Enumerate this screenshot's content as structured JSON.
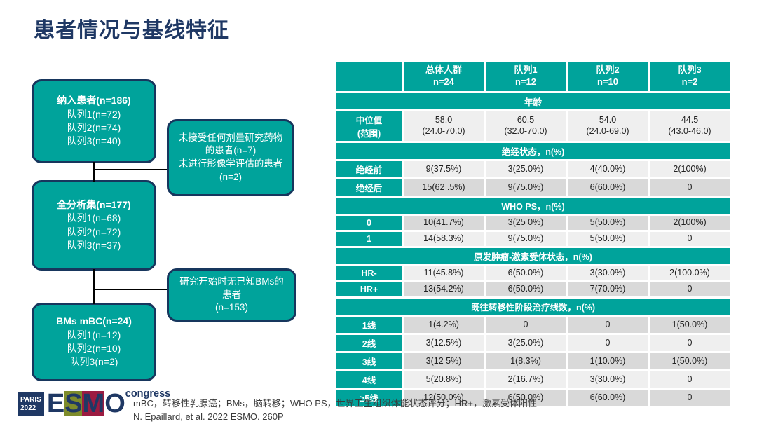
{
  "slide": {
    "title": "患者情况与基线特征"
  },
  "flowchart": {
    "boxes": [
      {
        "id": "enrolled",
        "lines": [
          "纳入患者(n=186)",
          "队列1(n=72)",
          "队列2(n=74)",
          "队列3(n=40)"
        ]
      },
      {
        "id": "excluded-1",
        "lines": [
          "未接受任何剂量研究药物",
          "的患者(n=7)",
          "未进行影像学评估的患者",
          "(n=2)"
        ]
      },
      {
        "id": "full-analysis",
        "lines": [
          "全分析集(n=177)",
          "队列1(n=68)",
          "队列2(n=72)",
          "队列3(n=37)"
        ]
      },
      {
        "id": "excluded-2",
        "lines": [
          "研究开始时无已知BMs的",
          "患者",
          "(n=153)"
        ]
      },
      {
        "id": "bms-mbc",
        "lines": [
          "BMs mBC(n=24)",
          "队列1(n=12)",
          "队列2(n=10)",
          "队列3(n=2)"
        ]
      }
    ]
  },
  "table": {
    "columns": [
      {
        "title": "总体人群",
        "n": "n=24"
      },
      {
        "title": "队列1",
        "n": "n=12"
      },
      {
        "title": "队列2",
        "n": "n=10"
      },
      {
        "title": "队列3",
        "n": "n=2"
      }
    ],
    "rows": [
      {
        "type": "section",
        "label": "年龄"
      },
      {
        "type": "data",
        "shade": "light",
        "label": "中位值\n(范围)",
        "values": [
          "58.0\n(24.0-70.0)",
          "60.5\n(32.0-70.0)",
          "54.0\n(24.0-69.0)",
          "44.5\n(43.0-46.0)"
        ]
      },
      {
        "type": "section",
        "label": "绝经状态，n(%)"
      },
      {
        "type": "data",
        "shade": "light",
        "label": "绝经前",
        "values": [
          "9(37.5%)",
          "3(25.0%)",
          "4(40.0%)",
          "2(100%)"
        ]
      },
      {
        "type": "data",
        "shade": "dark",
        "label": "绝经后",
        "values": [
          "15(62 .5%)",
          "9(75.0%)",
          "6(60.0%)",
          "0"
        ]
      },
      {
        "type": "section",
        "label": "WHO PS，n(%)"
      },
      {
        "type": "data",
        "shade": "dark",
        "label": "0",
        "values": [
          "10(41.7%)",
          "3(25 0%)",
          "5(50.0%)",
          "2(100%)"
        ]
      },
      {
        "type": "data",
        "shade": "light",
        "label": "1",
        "values": [
          "14(58.3%)",
          "9(75.0%)",
          "5(50.0%)",
          "0"
        ]
      },
      {
        "type": "section",
        "label": "原发肿瘤-激素受体状态，n(%)"
      },
      {
        "type": "data",
        "shade": "light",
        "label": "HR-",
        "values": [
          "11(45.8%)",
          "6(50.0%)",
          "3(30.0%)",
          "2(100.0%)"
        ]
      },
      {
        "type": "data",
        "shade": "dark",
        "label": "HR+",
        "values": [
          "13(54.2%)",
          "6(50.0%)",
          "7(70.0%)",
          "0"
        ]
      },
      {
        "type": "section",
        "label": "既往转移性阶段治疗线数，n(%)"
      },
      {
        "type": "data",
        "shade": "dark",
        "label": "1线",
        "values": [
          "1(4.2%)",
          "0",
          "0",
          "1(50.0%)"
        ]
      },
      {
        "type": "data",
        "shade": "light",
        "label": "2线",
        "values": [
          "3(12.5%)",
          "3(25.0%)",
          "0",
          "0"
        ]
      },
      {
        "type": "data",
        "shade": "dark",
        "label": "3线",
        "values": [
          "3(12 5%)",
          "1(8.3%)",
          "1(10.0%)",
          "1(50.0%)"
        ]
      },
      {
        "type": "data",
        "shade": "light",
        "label": "4线",
        "values": [
          "5(20.8%)",
          "2(16.7%)",
          "3(30.0%)",
          "0"
        ]
      },
      {
        "type": "data",
        "shade": "dark",
        "label": "≥5线",
        "values": [
          "12(50.0%)",
          "6(50.0%)",
          "6(60.0%)",
          "0"
        ]
      }
    ]
  },
  "footer": {
    "logo": {
      "paris": "PARIS",
      "year": "2022",
      "letters": [
        "E",
        "S",
        "M",
        "O"
      ],
      "congress": "congress"
    },
    "abbreviations": "mBC，转移性乳腺癌；BMs，脑转移；WHO PS，世界卫生组织体能状态评分；HR+，激素受体阳性",
    "citation": "N. Epaillard, et al. 2022 ESMO. 260P"
  },
  "colors": {
    "teal": "#00A39B",
    "navy": "#1F3864",
    "rowLight": "#EFEFEF",
    "rowDark": "#D9D9D9",
    "logoOlive": "#7E8C2B",
    "logoCrimson": "#9C1B41",
    "textDark": "#3A3A3A"
  }
}
